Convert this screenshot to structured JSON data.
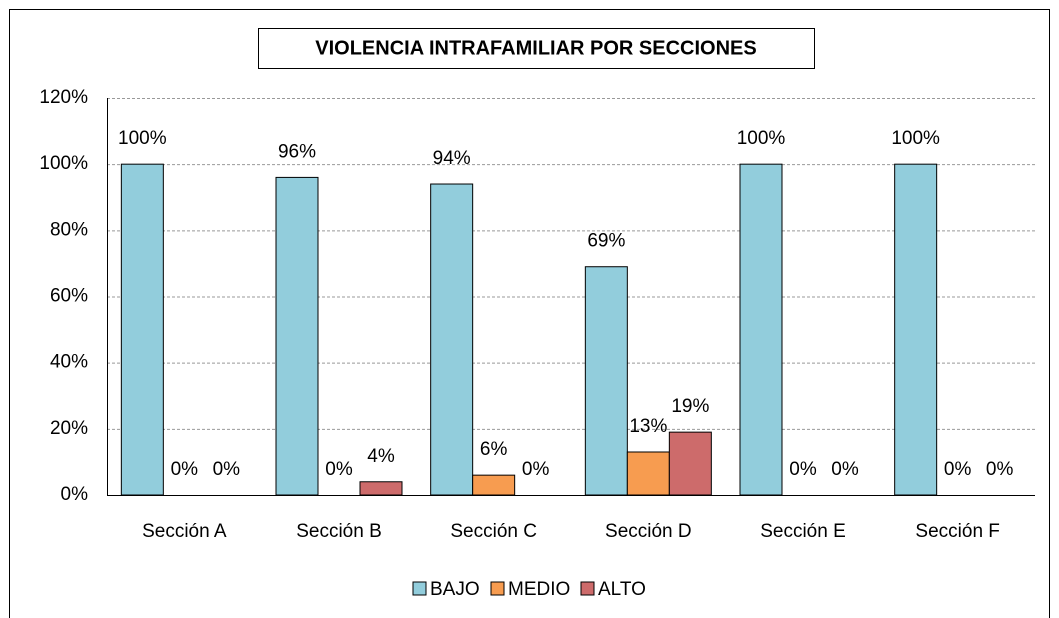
{
  "chart_data": {
    "type": "bar",
    "title": "VIOLENCIA INTRAFAMILIAR POR SECCIONES",
    "categories": [
      "Sección A",
      "Sección B",
      "Sección C",
      "Sección D",
      "Sección E",
      "Sección F"
    ],
    "series": [
      {
        "name": "BAJO",
        "color": "#92cddc",
        "values": [
          100,
          96,
          94,
          69,
          100,
          100
        ],
        "value_labels": [
          "100%",
          "96%",
          "94%",
          "69%",
          "100%",
          "100%"
        ]
      },
      {
        "name": "MEDIO",
        "color": "#f79c50",
        "values": [
          0,
          0,
          6,
          13,
          0,
          0
        ],
        "value_labels": [
          "0%",
          "0%",
          "6%",
          "13%",
          "0%",
          "0%"
        ]
      },
      {
        "name": "ALTO",
        "color": "#cd6b6b",
        "values": [
          0,
          4,
          0,
          19,
          0,
          0
        ],
        "value_labels": [
          "0%",
          "4%",
          "0%",
          "19%",
          "0%",
          "0%"
        ]
      }
    ],
    "ylim": [
      0,
      120
    ],
    "yticks": [
      {
        "value": 0,
        "label": "0%"
      },
      {
        "value": 20,
        "label": "20%"
      },
      {
        "value": 40,
        "label": "40%"
      },
      {
        "value": 60,
        "label": "60%"
      },
      {
        "value": 80,
        "label": "80%"
      },
      {
        "value": 100,
        "label": "100%"
      },
      {
        "value": 120,
        "label": "120%"
      }
    ],
    "grid": true,
    "legend": "bottom"
  }
}
